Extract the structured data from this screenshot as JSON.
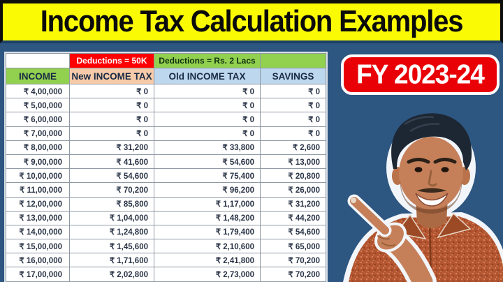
{
  "title_bar": {
    "text": "Income Tax Calculation Examples"
  },
  "badge": {
    "label": "FY 2023-24"
  },
  "person": {
    "alt": "presenter pointing at the income tax table"
  },
  "chart_data": {
    "type": "table",
    "title": "Income Tax Calculation Examples",
    "group_headers": {
      "blank_left": "",
      "new_regime_deduction": "Deductions = 50K",
      "old_regime_deduction": "Deductions = Rs. 2 Lacs",
      "blank_right": ""
    },
    "columns": [
      "INCOME",
      "New INCOME TAX",
      "Old INCOME TAX",
      "SAVINGS"
    ],
    "rows": [
      [
        "₹ 4,00,000",
        "₹ 0",
        "₹ 0",
        "₹ 0"
      ],
      [
        "₹ 5,00,000",
        "₹ 0",
        "₹ 0",
        "₹ 0"
      ],
      [
        "₹ 6,00,000",
        "₹ 0",
        "₹ 0",
        "₹ 0"
      ],
      [
        "₹ 7,00,000",
        "₹ 0",
        "₹ 0",
        "₹ 0"
      ],
      [
        "₹ 8,00,000",
        "₹ 31,200",
        "₹ 33,800",
        "₹ 2,600"
      ],
      [
        "₹ 9,00,000",
        "₹ 41,600",
        "₹ 54,600",
        "₹ 13,000"
      ],
      [
        "₹ 10,00,000",
        "₹ 54,600",
        "₹ 75,400",
        "₹ 20,800"
      ],
      [
        "₹ 11,00,000",
        "₹ 70,200",
        "₹ 96,200",
        "₹ 26,000"
      ],
      [
        "₹ 12,00,000",
        "₹ 85,800",
        "₹ 1,17,000",
        "₹ 31,200"
      ],
      [
        "₹ 13,00,000",
        "₹ 1,04,000",
        "₹ 1,48,200",
        "₹ 44,200"
      ],
      [
        "₹ 14,00,000",
        "₹ 1,24,800",
        "₹ 1,79,400",
        "₹ 54,600"
      ],
      [
        "₹ 15,00,000",
        "₹ 1,45,600",
        "₹ 2,10,600",
        "₹ 65,000"
      ],
      [
        "₹ 16,00,000",
        "₹ 1,71,600",
        "₹ 2,41,800",
        "₹ 70,200"
      ],
      [
        "₹ 17,00,000",
        "₹ 2,02,800",
        "₹ 2,73,000",
        "₹ 70,200"
      ]
    ]
  },
  "colors": {
    "navy": "#2d5681",
    "yellow": "#fafa05",
    "red": "#fe0002",
    "green": "#92d050",
    "peach": "#f7cbaa",
    "lightblue": "#bdd7ee",
    "badgered": "#e90007",
    "shirt": "#b25430",
    "skin": "#c5805a",
    "hair": "#1d2733",
    "outline": "#f2f6fa"
  }
}
